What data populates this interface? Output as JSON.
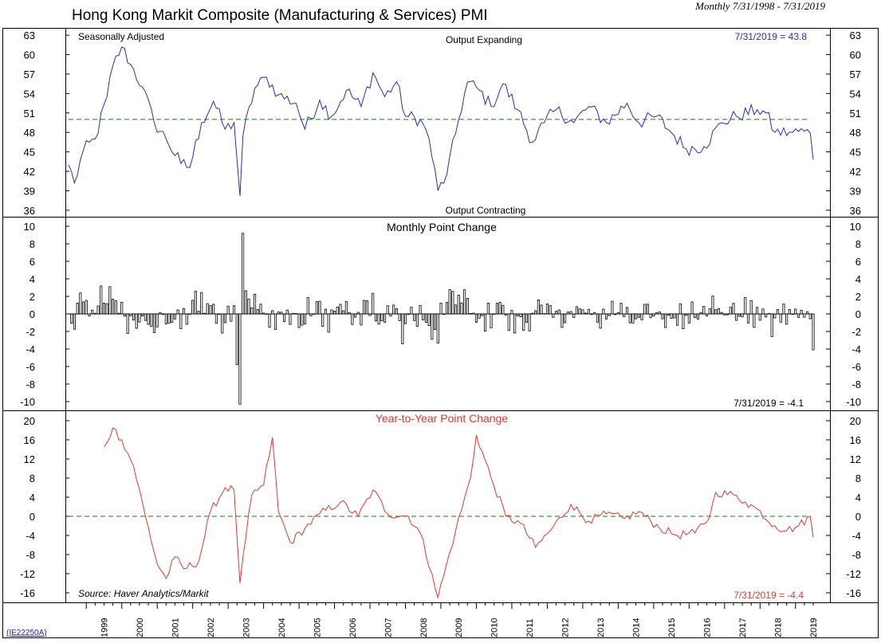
{
  "header": {
    "title": "Hong Kong Markit Composite (Manufacturing & Services) PMI",
    "period": "Monthly 7/31/1998 - 7/31/2019",
    "code": "(IE22250A)"
  },
  "chart_data": [
    {
      "id": "pmi",
      "type": "line",
      "title": "Hong Kong Markit Composite PMI",
      "note_left": "Seasonally Adjusted",
      "note_top": "Output Expanding",
      "note_bottom": "Output Contracting",
      "last_label": "7/31/2019 = 43.8",
      "color": "#2b2bbf",
      "reference_line": 50,
      "ylim": [
        35,
        64
      ],
      "yticks": [
        63,
        60,
        57,
        54,
        51,
        48,
        45,
        42,
        39,
        36
      ],
      "start": "1998-07",
      "frequency": "monthly",
      "keyframes": [
        [
          "1998-07",
          43.0
        ],
        [
          "1998-09",
          40.2
        ],
        [
          "1998-12",
          45.2
        ],
        [
          "1999-04",
          47.0
        ],
        [
          "1999-08",
          53.5
        ],
        [
          "1999-10",
          58.3
        ],
        [
          "2000-01",
          61.2
        ],
        [
          "2000-04",
          58.5
        ],
        [
          "2000-08",
          55.0
        ],
        [
          "2000-12",
          49.5
        ],
        [
          "2001-04",
          47.0
        ],
        [
          "2001-09",
          43.2
        ],
        [
          "2001-12",
          42.6
        ],
        [
          "2002-04",
          49.5
        ],
        [
          "2002-08",
          52.8
        ],
        [
          "2002-12",
          48.5
        ],
        [
          "2003-03",
          49.5
        ],
        [
          "2003-05",
          38.2
        ],
        [
          "2003-06",
          47.5
        ],
        [
          "2003-10",
          54.8
        ],
        [
          "2004-02",
          56.5
        ],
        [
          "2004-06",
          53.8
        ],
        [
          "2004-12",
          52.5
        ],
        [
          "2005-03",
          48.5
        ],
        [
          "2005-08",
          53.0
        ],
        [
          "2005-12",
          50.5
        ],
        [
          "2006-05",
          54.5
        ],
        [
          "2006-10",
          52.0
        ],
        [
          "2007-02",
          57.2
        ],
        [
          "2007-06",
          53.5
        ],
        [
          "2007-10",
          55.8
        ],
        [
          "2008-01",
          50.5
        ],
        [
          "2008-06",
          50.0
        ],
        [
          "2008-09",
          47.0
        ],
        [
          "2008-12",
          39.0
        ],
        [
          "2009-03",
          41.5
        ],
        [
          "2009-07",
          50.0
        ],
        [
          "2009-10",
          55.8
        ],
        [
          "2010-02",
          54.5
        ],
        [
          "2010-06",
          52.0
        ],
        [
          "2010-10",
          55.5
        ],
        [
          "2011-03",
          51.5
        ],
        [
          "2011-08",
          46.5
        ],
        [
          "2011-12",
          49.5
        ],
        [
          "2012-04",
          51.5
        ],
        [
          "2012-10",
          49.5
        ],
        [
          "2013-03",
          52.0
        ],
        [
          "2013-09",
          49.5
        ],
        [
          "2014-04",
          52.5
        ],
        [
          "2014-08",
          49.5
        ],
        [
          "2015-02",
          50.5
        ],
        [
          "2015-08",
          47.5
        ],
        [
          "2015-12",
          45.5
        ],
        [
          "2016-06",
          45.8
        ],
        [
          "2016-12",
          49.5
        ],
        [
          "2017-05",
          50.5
        ],
        [
          "2017-12",
          51.5
        ],
        [
          "2018-03",
          51.0
        ],
        [
          "2018-06",
          48.0
        ],
        [
          "2018-12",
          48.0
        ],
        [
          "2019-04",
          48.2
        ],
        [
          "2019-06",
          47.9
        ],
        [
          "2019-07",
          43.8
        ]
      ],
      "noise_amplitude": 1.1
    },
    {
      "id": "monthly_change",
      "type": "bar",
      "title": "Monthly Point Change",
      "last_label": "7/31/2019 = -4.1",
      "color": "#000000",
      "ylim": [
        -11,
        11
      ],
      "yticks": [
        10,
        8,
        6,
        4,
        2,
        0,
        -2,
        -4,
        -6,
        -8,
        -10
      ],
      "derived_from": "pmi",
      "transform": "month-over-month difference",
      "start": "1998-08",
      "notable_values": [
        [
          "2003-05",
          -10.3
        ],
        [
          "2003-06",
          9.2
        ],
        [
          "2019-07",
          -4.1
        ]
      ]
    },
    {
      "id": "year_change",
      "type": "line",
      "title": "Year-to-Year Point Change",
      "source": "Source: Haver Analytics/Markit",
      "last_label": "7/31/2019 = -4.4",
      "color": "#e8352e",
      "reference_line": 0,
      "ylim": [
        -18,
        22
      ],
      "yticks": [
        20,
        16,
        12,
        8,
        4,
        0,
        -4,
        -8,
        -12,
        -16
      ],
      "derived_from": "pmi",
      "transform": "12-month difference",
      "start": "1999-07",
      "keyframes": [
        [
          "1999-07",
          14.5
        ],
        [
          "1999-10",
          18.5
        ],
        [
          "2000-01",
          16.0
        ],
        [
          "2000-05",
          10.5
        ],
        [
          "2000-09",
          0.0
        ],
        [
          "2001-01",
          -10.0
        ],
        [
          "2001-04",
          -13.0
        ],
        [
          "2001-07",
          -8.5
        ],
        [
          "2001-10",
          -11.0
        ],
        [
          "2002-03",
          -9.5
        ],
        [
          "2002-07",
          1.0
        ],
        [
          "2002-12",
          6.0
        ],
        [
          "2003-03",
          5.5
        ],
        [
          "2003-05",
          -14.0
        ],
        [
          "2003-09",
          4.5
        ],
        [
          "2004-01",
          6.5
        ],
        [
          "2004-04",
          16.5
        ],
        [
          "2004-06",
          1.0
        ],
        [
          "2004-10",
          -5.5
        ],
        [
          "2005-03",
          -2.5
        ],
        [
          "2005-08",
          0.5
        ],
        [
          "2006-03",
          3.0
        ],
        [
          "2006-09",
          0.0
        ],
        [
          "2007-02",
          5.5
        ],
        [
          "2007-07",
          0.5
        ],
        [
          "2008-02",
          0.0
        ],
        [
          "2008-06",
          -3.5
        ],
        [
          "2008-10",
          -12.0
        ],
        [
          "2008-12",
          -17.0
        ],
        [
          "2009-06",
          -3.0
        ],
        [
          "2009-11",
          8.0
        ],
        [
          "2010-01",
          17.0
        ],
        [
          "2010-06",
          8.0
        ],
        [
          "2010-11",
          0.0
        ],
        [
          "2011-04",
          -1.5
        ],
        [
          "2011-09",
          -6.5
        ],
        [
          "2012-02",
          -3.0
        ],
        [
          "2012-09",
          2.5
        ],
        [
          "2013-03",
          -1.0
        ],
        [
          "2013-09",
          0.5
        ],
        [
          "2014-03",
          -0.5
        ],
        [
          "2014-08",
          1.0
        ],
        [
          "2015-03",
          -2.5
        ],
        [
          "2015-09",
          -4.0
        ],
        [
          "2016-03",
          -3.5
        ],
        [
          "2016-08",
          0.0
        ],
        [
          "2016-10",
          5.0
        ],
        [
          "2017-04",
          4.5
        ],
        [
          "2017-08",
          3.0
        ],
        [
          "2017-12",
          1.5
        ],
        [
          "2018-06",
          -2.0
        ],
        [
          "2018-10",
          -3.0
        ],
        [
          "2019-02",
          -2.0
        ],
        [
          "2019-06",
          0.0
        ],
        [
          "2019-07",
          -4.4
        ]
      ],
      "noise_amplitude": 0.9
    }
  ],
  "x_axis": {
    "years": [
      "1999",
      "2000",
      "2001",
      "2002",
      "2003",
      "2004",
      "2005",
      "2006",
      "2007",
      "2008",
      "2009",
      "2010",
      "2011",
      "2012",
      "2013",
      "2014",
      "2015",
      "2016",
      "2017",
      "2018",
      "2019"
    ],
    "range": [
      "1998-07",
      "2019-07"
    ]
  },
  "colors": {
    "reference": "#1a7a1a",
    "frame": "#000000",
    "background": "#ffffff"
  }
}
